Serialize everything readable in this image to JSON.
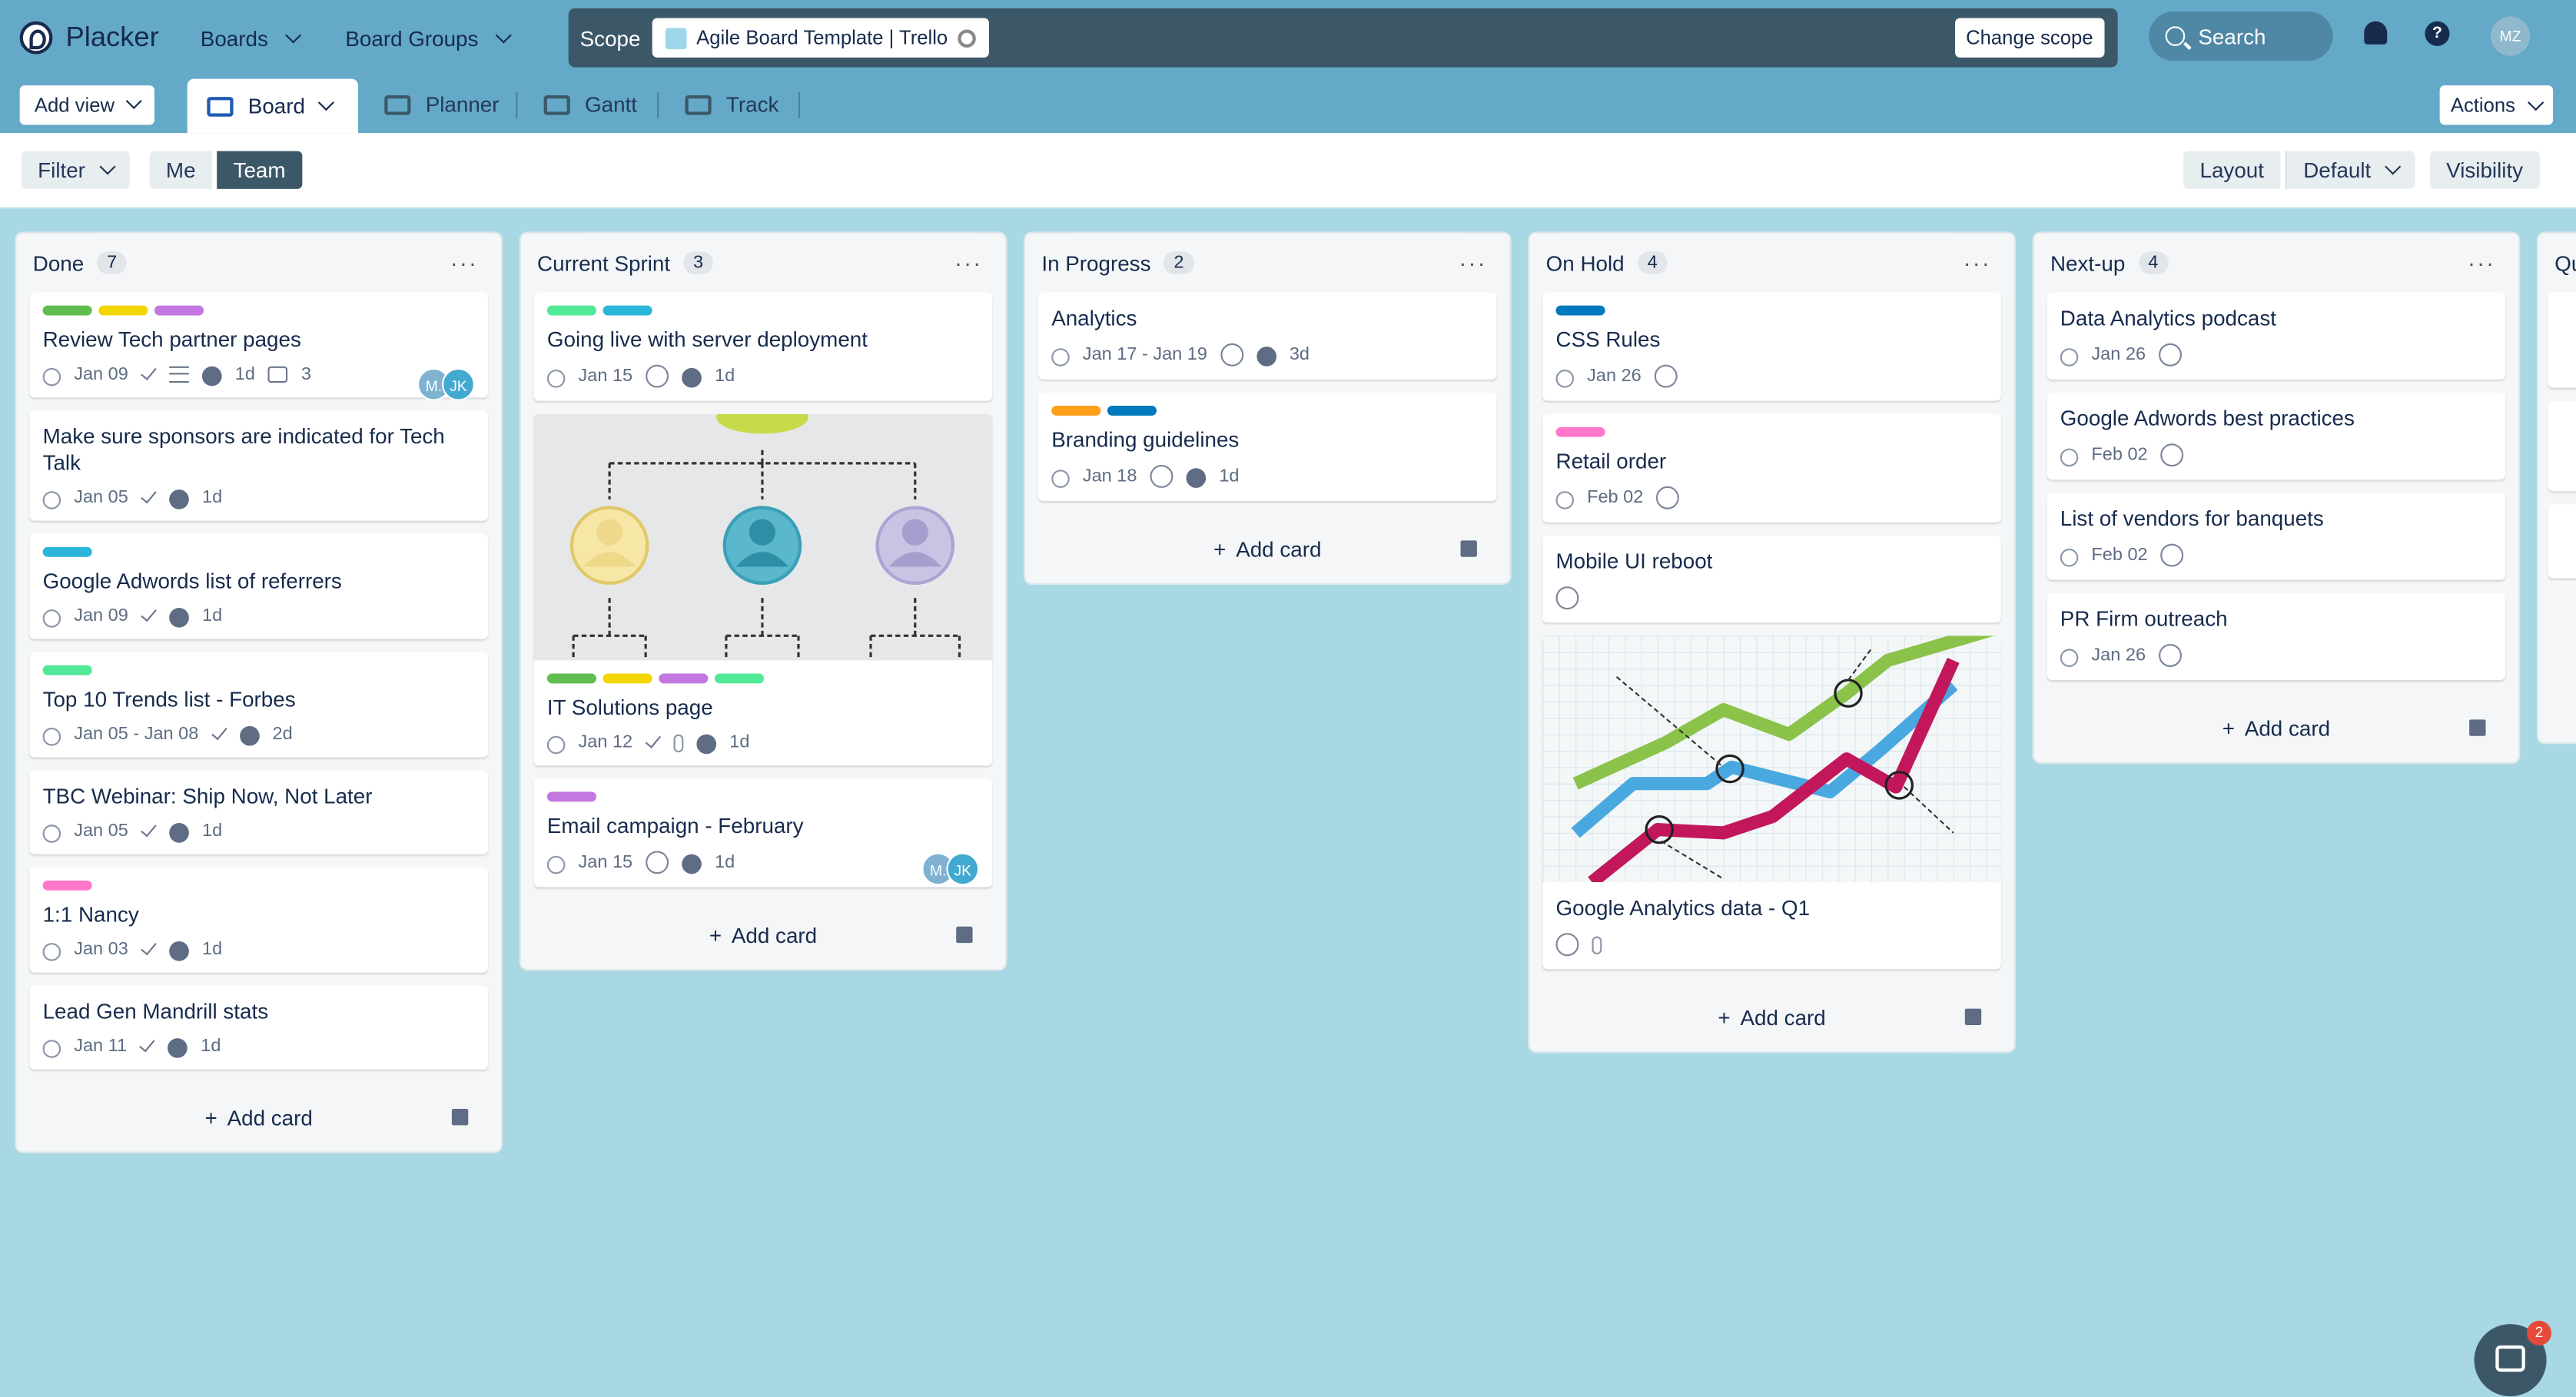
{
  "app": {
    "name": "Placker",
    "user_initials": "MZ"
  },
  "topnav": {
    "boards": "Boards",
    "board_groups": "Board Groups",
    "search": "Search"
  },
  "scope": {
    "label": "Scope",
    "board": "Agile Board Template | Trello",
    "change": "Change scope"
  },
  "viewbar": {
    "add_view": "Add view",
    "board": "Board",
    "planner": "Planner",
    "gantt": "Gantt",
    "track": "Track",
    "actions": "Actions"
  },
  "filterbar": {
    "filter": "Filter",
    "me": "Me",
    "team": "Team",
    "layout": "Layout",
    "default": "Default",
    "visibility": "Visibility"
  },
  "add_card": "Add card",
  "chat_badge": "2",
  "colors": {
    "green": "#61bd4f",
    "yellow": "#f2d600",
    "purple": "#c377e0",
    "sky": "#29b6d9",
    "mint": "#51e898",
    "pink": "#ff78cb",
    "orange": "#ff9f1a",
    "blue": "#0079bf"
  },
  "columns": [
    {
      "title": "Done",
      "count": "7",
      "cards": [
        {
          "title": "Review Tech partner pages",
          "date": "Jan 09",
          "timer": "1d",
          "comments": "3",
          "members": [
            "M.",
            "JK"
          ]
        },
        {
          "title": "Make sure sponsors are indicated for Tech Talk",
          "date": "Jan 05",
          "timer": "1d"
        },
        {
          "title": "Google Adwords list of referrers",
          "date": "Jan 09",
          "timer": "1d"
        },
        {
          "title": "Top 10 Trends list - Forbes",
          "date": "Jan 05 - Jan 08",
          "timer": "2d"
        },
        {
          "title": "TBC Webinar: Ship Now, Not Later",
          "date": "Jan 05",
          "timer": "1d"
        },
        {
          "title": "1:1 Nancy",
          "date": "Jan 03",
          "timer": "1d"
        },
        {
          "title": "Lead Gen Mandrill stats",
          "date": "Jan 11",
          "timer": "1d"
        }
      ]
    },
    {
      "title": "Current Sprint",
      "count": "3",
      "cards": [
        {
          "title": "Going live with server deployment",
          "date": "Jan 15",
          "timer": "1d"
        },
        {
          "title": "IT Solutions page",
          "date": "Jan 12",
          "timer": "1d"
        },
        {
          "title": "Email campaign - February",
          "date": "Jan 15",
          "timer": "1d",
          "members": [
            "M.",
            "JK"
          ]
        }
      ]
    },
    {
      "title": "In Progress",
      "count": "2",
      "cards": [
        {
          "title": "Analytics",
          "date": "Jan 17 - Jan 19",
          "timer": "3d"
        },
        {
          "title": "Branding guidelines",
          "date": "Jan 18",
          "timer": "1d"
        }
      ]
    },
    {
      "title": "On Hold",
      "count": "4",
      "cards": [
        {
          "title": "CSS Rules",
          "date": "Jan 26"
        },
        {
          "title": "Retail order",
          "date": "Feb 02"
        },
        {
          "title": "Mobile UI reboot"
        },
        {
          "title": "Google Analytics data - Q1"
        }
      ]
    },
    {
      "title": "Next-up",
      "count": "4",
      "cards": [
        {
          "title": "Data Analytics podcast",
          "date": "Jan 26"
        },
        {
          "title": "Google Adwords best practices",
          "date": "Feb 02"
        },
        {
          "title": "List of vendors for banquets",
          "date": "Feb 02"
        },
        {
          "title": "PR Firm outreach",
          "date": "Jan 26"
        }
      ]
    },
    {
      "title": "Qu"
    }
  ]
}
